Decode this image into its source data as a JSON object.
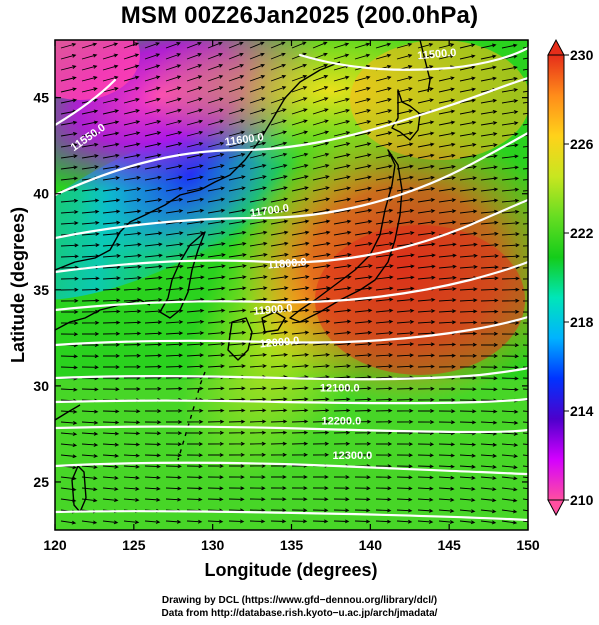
{
  "title": "MSM 00Z26Jan2025 (200.0hPa)",
  "map": {
    "xlabel": "Longitude (degrees)",
    "ylabel": "Latitude  (degrees)",
    "xlim": [
      120,
      150
    ],
    "ylim": [
      22.5,
      48
    ],
    "xticks": [
      120,
      125,
      130,
      135,
      140,
      145,
      150
    ],
    "yticks": [
      25,
      30,
      35,
      40,
      45
    ],
    "contour_labels": [
      {
        "text": "11600.0",
        "lon": 130.8,
        "lat": 42.5,
        "angle": -8
      },
      {
        "text": "11550.0",
        "lon": 121.2,
        "lat": 42.2,
        "angle": -35
      },
      {
        "text": "11700.0",
        "lon": 132.4,
        "lat": 38.8,
        "angle": -8
      },
      {
        "text": "11800.0",
        "lon": 133.5,
        "lat": 36.1,
        "angle": -5
      },
      {
        "text": "11900.0",
        "lon": 132.6,
        "lat": 33.7,
        "angle": -5
      },
      {
        "text": "12000.0",
        "lon": 133.0,
        "lat": 32.0,
        "angle": -5
      },
      {
        "text": "12100.0",
        "lon": 136.8,
        "lat": 29.7,
        "angle": 0
      },
      {
        "text": "12200.0",
        "lon": 136.9,
        "lat": 28.0,
        "angle": 0
      },
      {
        "text": "12300.0",
        "lon": 137.6,
        "lat": 26.2,
        "angle": 0
      },
      {
        "text": "11500.0",
        "lon": 143.0,
        "lat": 47.0,
        "angle": -5
      }
    ]
  },
  "colorbar": {
    "min": 210,
    "max": 230,
    "labels": [
      "230",
      "226",
      "222",
      "218",
      "214",
      "210"
    ],
    "colors": [
      "#ff4fa0",
      "#d400ff",
      "#4d00cc",
      "#0033ff",
      "#00b3ff",
      "#00e6b8",
      "#14cc1a",
      "#66dd22",
      "#c8e620",
      "#ffd21a",
      "#ff8c1a",
      "#e62e1a"
    ]
  },
  "credit": {
    "line1": "Drawing by DCL (https://www.gfd−dennou.org/library/dcl/)",
    "line2": "Data from http://database.rish.kyoto−u.ac.jp/arch/jmadata/"
  }
}
